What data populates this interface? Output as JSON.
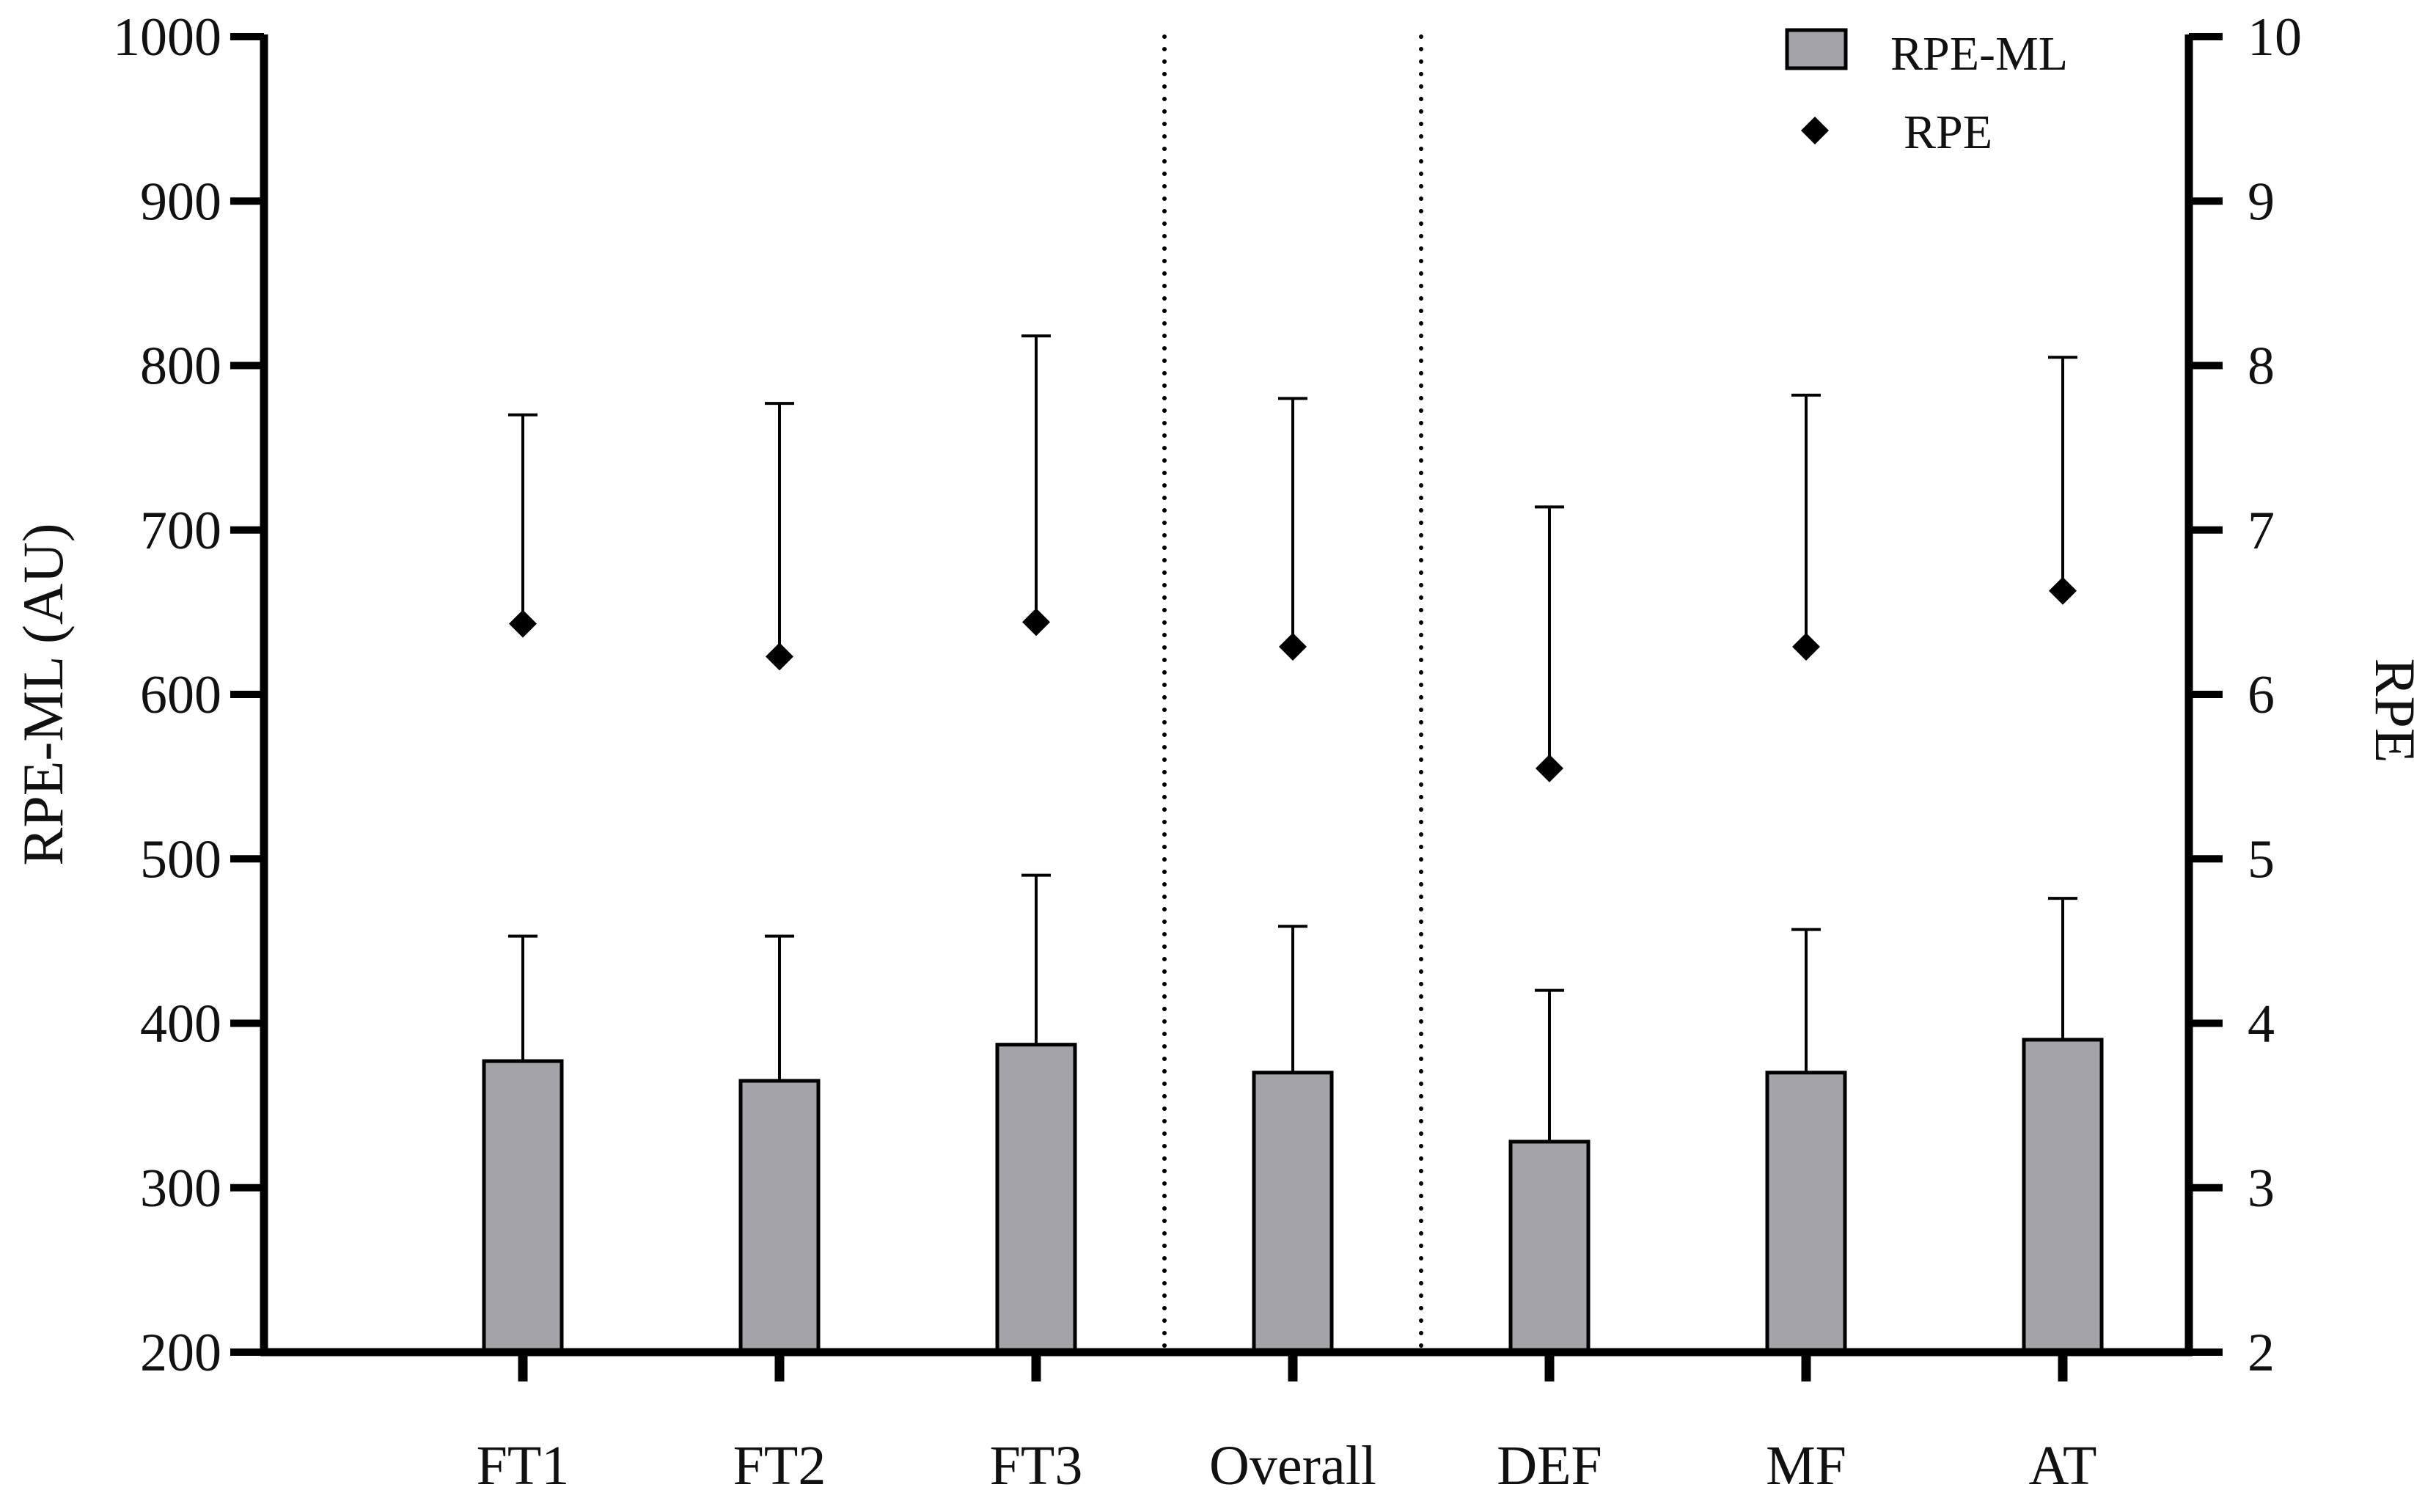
{
  "chart_data": {
    "type": "bar",
    "categories": [
      "FT1",
      "FT2",
      "FT3",
      "Overall",
      "DEF",
      "MF",
      "AT"
    ],
    "series": [
      {
        "name": "RPE-ML",
        "kind": "bar",
        "axis": "left",
        "values": [
          377,
          365,
          387,
          370,
          328,
          370,
          390
        ],
        "error_upper": [
          453,
          453,
          490,
          459,
          420,
          457,
          476
        ]
      },
      {
        "name": "RPE",
        "kind": "point",
        "marker": "diamond",
        "axis": "right",
        "values": [
          6.43,
          6.23,
          6.44,
          6.29,
          5.55,
          6.29,
          6.63
        ],
        "error_upper": [
          7.7,
          7.77,
          8.18,
          7.8,
          7.14,
          7.82,
          8.05
        ]
      }
    ],
    "xlabel": "",
    "ylabel": "RPE-ML (AU)",
    "ylabel_right": "RPE",
    "ylim": [
      200,
      1000
    ],
    "ylim_right": [
      2,
      10
    ],
    "yticks": [
      "200",
      "300",
      "400",
      "500",
      "600",
      "700",
      "800",
      "900",
      "1000"
    ],
    "yticks_right": [
      "2",
      "3",
      "4",
      "5",
      "6",
      "7",
      "8",
      "9",
      "10"
    ],
    "separators_after": [
      "FT3",
      "Overall"
    ],
    "legend": {
      "placement": "top-right",
      "entries": [
        "RPE-ML",
        "RPE"
      ]
    },
    "grid": false,
    "colors": {
      "bar_fill": "#a3a3a8",
      "stroke": "#000000",
      "text": "#111111"
    }
  }
}
